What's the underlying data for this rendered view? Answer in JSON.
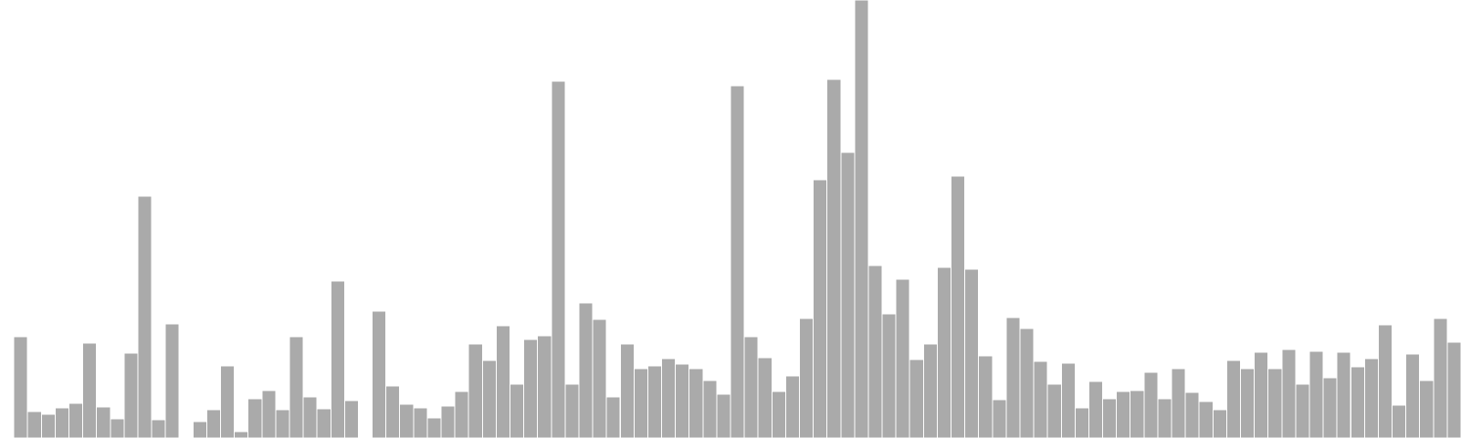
{
  "chart_data": {
    "type": "bar",
    "title": "",
    "xlabel": "",
    "ylabel": "",
    "ylim": [
      0,
      480
    ],
    "grid": false,
    "legend": "none",
    "bar_color": "#aaaaaa",
    "bar_edge_color": "#ffffff",
    "values": [
      1,
      111,
      29,
      26,
      33,
      38,
      104,
      34,
      21,
      93,
      265,
      20,
      125,
      0,
      18,
      31,
      79,
      7,
      43,
      52,
      31,
      111,
      45,
      32,
      172,
      41,
      0,
      139,
      57,
      37,
      33,
      22,
      35,
      51,
      103,
      85,
      123,
      59,
      108,
      112,
      391,
      59,
      148,
      130,
      45,
      103,
      76,
      79,
      87,
      81,
      76,
      63,
      48,
      386,
      111,
      88,
      51,
      68,
      131,
      283,
      393,
      313,
      480,
      189,
      136,
      174,
      86,
      103,
      187,
      287,
      185,
      90,
      42,
      132,
      120,
      84,
      59,
      82,
      33,
      62,
      43,
      51,
      52,
      72,
      43,
      76,
      50,
      40,
      31,
      85,
      76,
      94,
      76,
      97,
      59,
      95,
      66,
      94,
      78,
      87,
      124,
      36,
      92,
      63,
      131,
      105
    ]
  }
}
